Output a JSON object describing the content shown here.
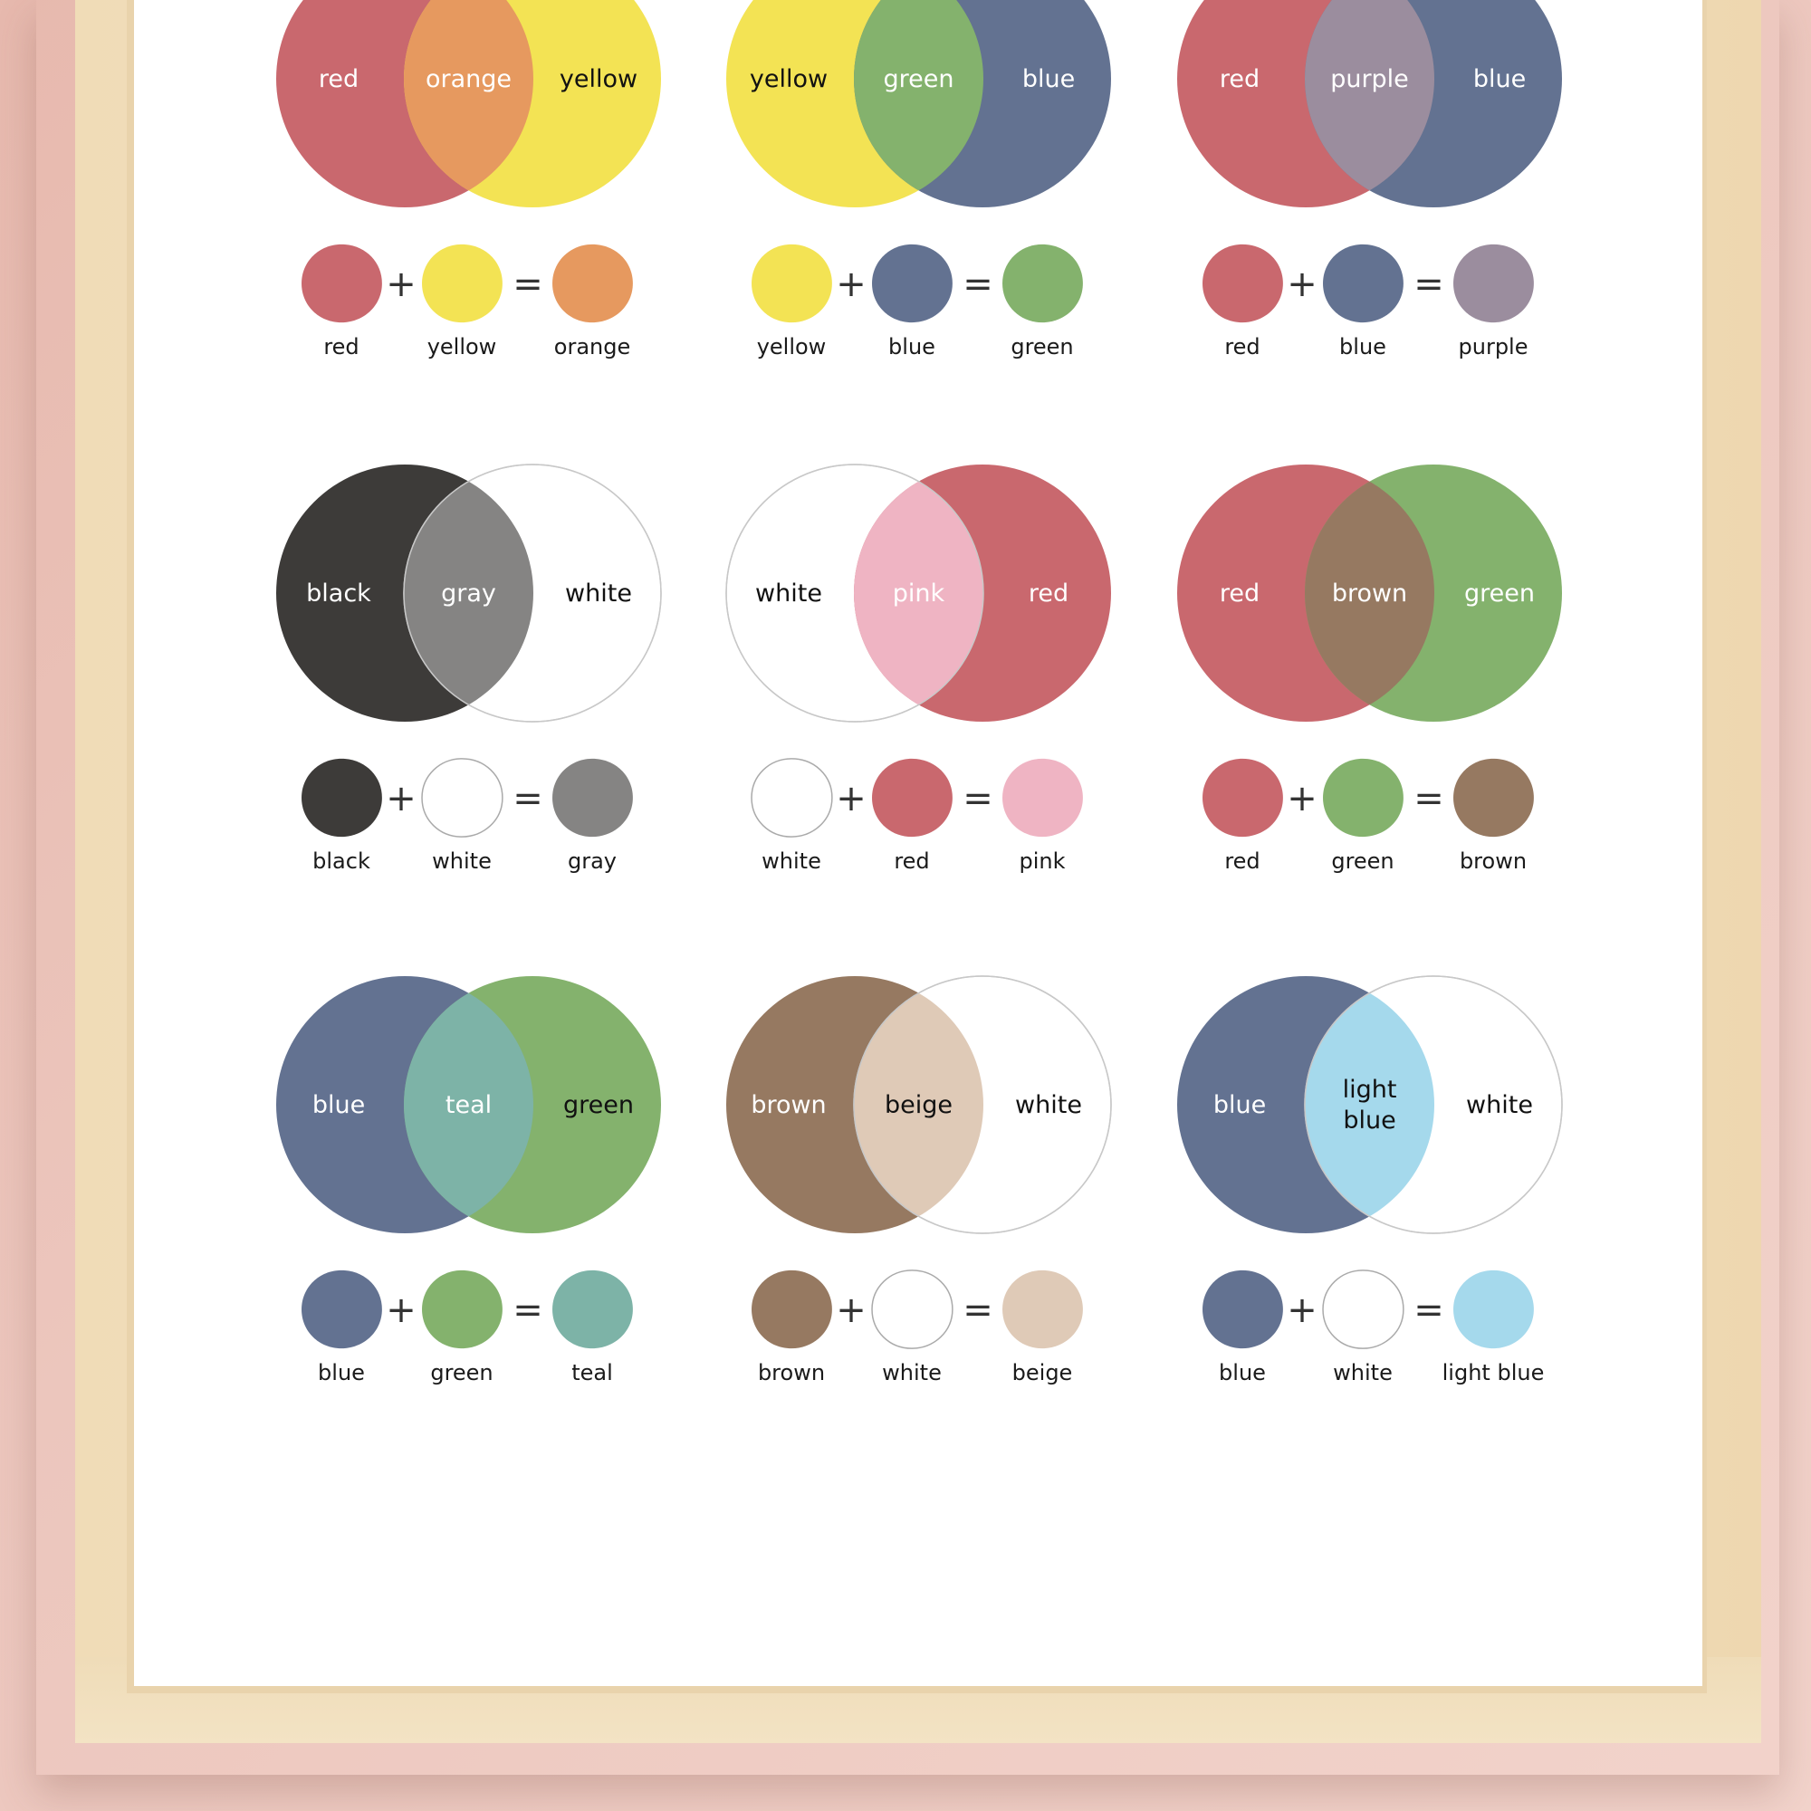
{
  "colors": {
    "red": "#c9686e",
    "yellow": "#f3e354",
    "blue": "#637291",
    "green": "#84b26d",
    "black": "#3d3b39",
    "white": "#ffffff",
    "orange": "#e6995f",
    "purple": "#9b8d9e",
    "gray": "#858483",
    "pink": "#efb4c3",
    "brown": "#967961",
    "teal": "#7db3a7",
    "beige": "#dfcab7",
    "light_blue": "#a5d9ec"
  },
  "operators": {
    "plus": "+",
    "equals": "="
  },
  "mixes": [
    {
      "left": {
        "label": "red",
        "color": "#c9686e",
        "text": "#ffffff"
      },
      "right": {
        "label": "yellow",
        "color": "#f3e354",
        "text": "#111111"
      },
      "mid": {
        "label": [
          "orange"
        ],
        "color": "#e6995f",
        "text": "#ffffff"
      },
      "swatches": [
        "red",
        "yellow",
        "orange"
      ]
    },
    {
      "left": {
        "label": "yellow",
        "color": "#f3e354",
        "text": "#111111"
      },
      "right": {
        "label": "blue",
        "color": "#637291",
        "text": "#ffffff"
      },
      "mid": {
        "label": [
          "green"
        ],
        "color": "#84b26d",
        "text": "#ffffff"
      },
      "swatches": [
        "yellow",
        "blue",
        "green"
      ]
    },
    {
      "left": {
        "label": "red",
        "color": "#c9686e",
        "text": "#ffffff"
      },
      "right": {
        "label": "blue",
        "color": "#637291",
        "text": "#ffffff"
      },
      "mid": {
        "label": [
          "purple"
        ],
        "color": "#9b8d9e",
        "text": "#ffffff"
      },
      "swatches": [
        "red",
        "blue",
        "purple"
      ]
    },
    {
      "left": {
        "label": "black",
        "color": "#3d3b39",
        "text": "#ffffff"
      },
      "right": {
        "label": "white",
        "color": "#ffffff",
        "text": "#111111"
      },
      "mid": {
        "label": [
          "gray"
        ],
        "color": "#858483",
        "text": "#ffffff"
      },
      "swatches": [
        "black",
        "white",
        "gray"
      ]
    },
    {
      "left": {
        "label": "white",
        "color": "#ffffff",
        "text": "#111111"
      },
      "right": {
        "label": "red",
        "color": "#c9686e",
        "text": "#ffffff"
      },
      "mid": {
        "label": [
          "pink"
        ],
        "color": "#efb4c3",
        "text": "#ffffff"
      },
      "swatches": [
        "white",
        "red",
        "pink"
      ]
    },
    {
      "left": {
        "label": "red",
        "color": "#c9686e",
        "text": "#ffffff"
      },
      "right": {
        "label": "green",
        "color": "#84b26d",
        "text": "#ffffff"
      },
      "mid": {
        "label": [
          "brown"
        ],
        "color": "#967961",
        "text": "#ffffff"
      },
      "swatches": [
        "red",
        "green",
        "brown"
      ]
    },
    {
      "left": {
        "label": "blue",
        "color": "#637291",
        "text": "#ffffff"
      },
      "right": {
        "label": "green",
        "color": "#84b26d",
        "text": "#111111"
      },
      "mid": {
        "label": [
          "teal"
        ],
        "color": "#7db3a7",
        "text": "#ffffff"
      },
      "swatches": [
        "blue",
        "green",
        "teal"
      ]
    },
    {
      "left": {
        "label": "brown",
        "color": "#967961",
        "text": "#ffffff"
      },
      "right": {
        "label": "white",
        "color": "#ffffff",
        "text": "#111111"
      },
      "mid": {
        "label": [
          "beige"
        ],
        "color": "#dfcab7",
        "text": "#111111"
      },
      "swatches": [
        "brown",
        "white",
        "beige"
      ]
    },
    {
      "left": {
        "label": "blue",
        "color": "#637291",
        "text": "#ffffff"
      },
      "right": {
        "label": "white",
        "color": "#ffffff",
        "text": "#111111"
      },
      "mid": {
        "label": [
          "light",
          "blue"
        ],
        "color": "#a5d9ec",
        "text": "#111111"
      },
      "swatches": [
        "blue",
        "white",
        "light blue"
      ]
    }
  ]
}
